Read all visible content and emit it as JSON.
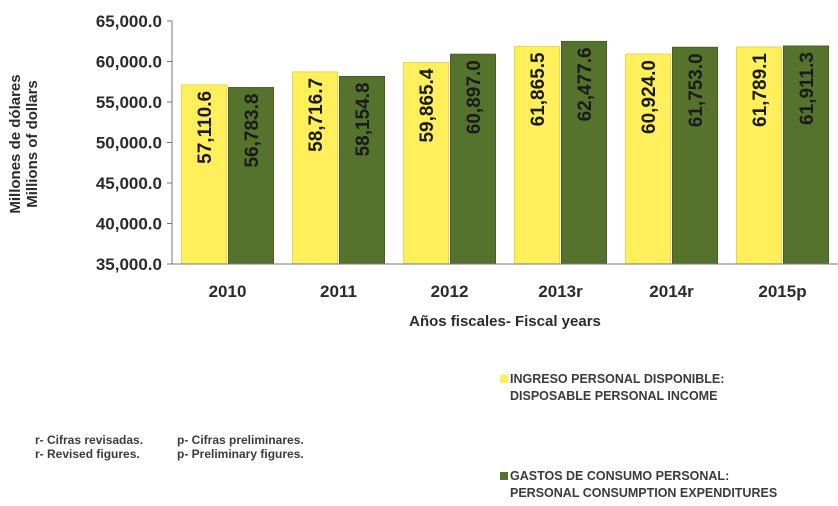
{
  "chart_data": {
    "type": "bar",
    "title": "",
    "xlabel": "Años fiscales- Fiscal years",
    "ylabel": [
      "Millones de dólares",
      "Millions of dollars"
    ],
    "ylim": [
      35000,
      65000
    ],
    "yticks": [
      "35,000.0",
      "40,000.0",
      "45,000.0",
      "50,000.0",
      "55,000.0",
      "60,000.0",
      "65,000.0"
    ],
    "categories": [
      "2010",
      "2011",
      "2012",
      "2013r",
      "2014r",
      "2015p"
    ],
    "series": [
      {
        "name": "INGRESO PERSONAL DISPONIBLE: DISPOSABLE PERSONAL INCOME",
        "color": "#ffef5a",
        "values": [
          57110.6,
          58716.7,
          59865.4,
          61865.5,
          60924.0,
          61789.1
        ],
        "labels": [
          "57,110.6",
          "58,716.7",
          "59,865.4",
          "61,865.5",
          "60,924.0",
          "61,789.1"
        ]
      },
      {
        "name": "GASTOS DE CONSUMO PERSONAL: PERSONAL CONSUMPTION EXPENDITURES",
        "color": "#56732e",
        "values": [
          56783.8,
          58154.8,
          60897.0,
          62477.6,
          61753.0,
          61911.3
        ],
        "labels": [
          "56,783.8",
          "58,154.8",
          "60,897.0",
          "62,477.6",
          "61,753.0",
          "61,911.3"
        ]
      }
    ],
    "grid": false,
    "legend_position": "bottom-right"
  },
  "legend": [
    {
      "line1": "INGRESO PERSONAL DISPONIBLE:",
      "line2": "DISPOSABLE PERSONAL INCOME",
      "color": "#ffef5a"
    },
    {
      "line1": "GASTOS DE CONSUMO PERSONAL:",
      "line2": "PERSONAL CONSUMPTION EXPENDITURES",
      "color": "#56732e"
    }
  ],
  "notes": {
    "revised_es": "r- Cifras revisadas.",
    "revised_en": "r- Revised figures.",
    "prelim_es": "p- Cifras preliminares.",
    "prelim_en": "p- Preliminary figures."
  }
}
